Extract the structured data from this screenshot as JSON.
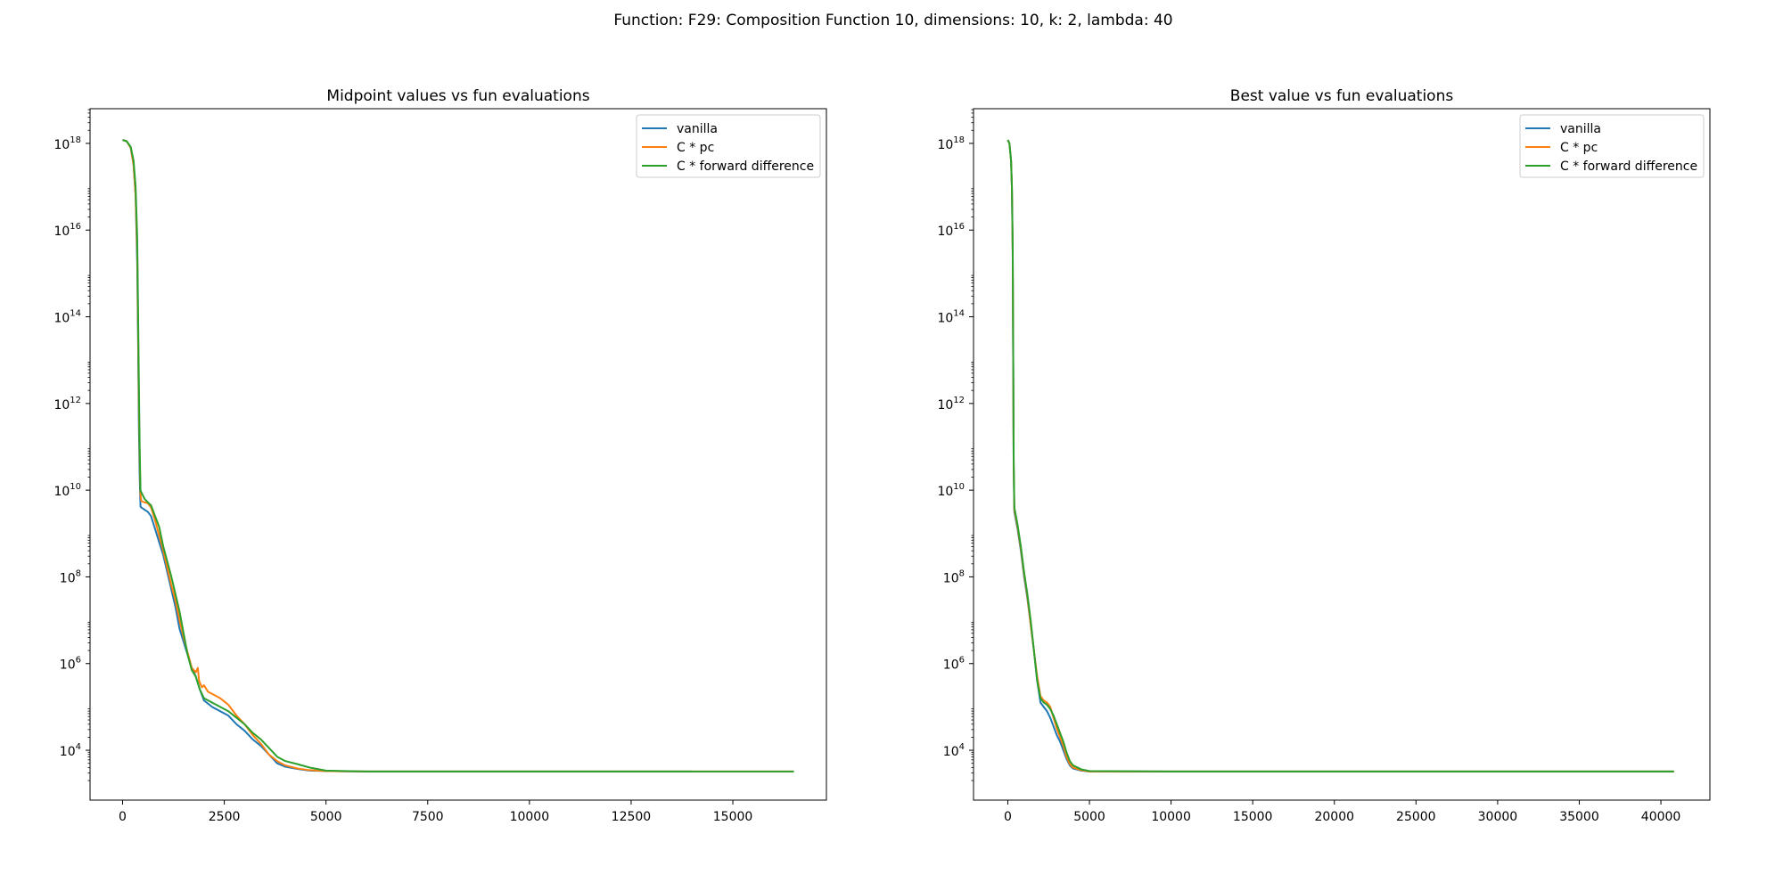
{
  "figure": {
    "suptitle": "Function: F29: Composition Function 10, dimensions: 10, k: 2, lambda: 40"
  },
  "colors": {
    "vanilla": "#1f77b4",
    "pc": "#ff7f0e",
    "fd": "#2ca02c"
  },
  "chart_data": [
    {
      "type": "line",
      "title": "Midpoint values vs fun evaluations",
      "xlabel": "",
      "ylabel": "",
      "yscale": "log",
      "xlim": [
        -800,
        17300
      ],
      "ylim_log10": [
        2.85,
        18.8
      ],
      "xticks": [
        0,
        2500,
        5000,
        7500,
        10000,
        12500,
        15000
      ],
      "xtick_labels": [
        "0",
        "2500",
        "5000",
        "7500",
        "10000",
        "12500",
        "15000"
      ],
      "yticks_exp": [
        4,
        6,
        8,
        10,
        12,
        14,
        16,
        18
      ],
      "legend_position": "upper right",
      "grid": false,
      "series": [
        {
          "name": "vanilla",
          "color_key": "vanilla",
          "points": [
            [
              0,
              18.08
            ],
            [
              100,
              18.05
            ],
            [
              200,
              17.9
            ],
            [
              270,
              17.5
            ],
            [
              320,
              16.8
            ],
            [
              360,
              15.2
            ],
            [
              380,
              13.5
            ],
            [
              400,
              11.5
            ],
            [
              420,
              10.3
            ],
            [
              440,
              9.62
            ],
            [
              460,
              9.6
            ],
            [
              540,
              9.55
            ],
            [
              620,
              9.5
            ],
            [
              700,
              9.4
            ],
            [
              800,
              9.1
            ],
            [
              900,
              8.8
            ],
            [
              1000,
              8.5
            ],
            [
              1100,
              8.1
            ],
            [
              1200,
              7.7
            ],
            [
              1300,
              7.3
            ],
            [
              1400,
              6.8
            ],
            [
              1500,
              6.5
            ],
            [
              1600,
              6.2
            ],
            [
              1700,
              5.9
            ],
            [
              1750,
              5.8
            ],
            [
              1800,
              5.7
            ],
            [
              1900,
              5.4
            ],
            [
              2000,
              5.15
            ],
            [
              2200,
              5.0
            ],
            [
              2400,
              4.9
            ],
            [
              2600,
              4.8
            ],
            [
              2800,
              4.6
            ],
            [
              3000,
              4.45
            ],
            [
              3200,
              4.25
            ],
            [
              3400,
              4.1
            ],
            [
              3600,
              3.9
            ],
            [
              3800,
              3.7
            ],
            [
              4000,
              3.62
            ],
            [
              4300,
              3.57
            ],
            [
              4600,
              3.53
            ],
            [
              5000,
              3.52
            ],
            [
              6000,
              3.51
            ],
            [
              8000,
              3.51
            ],
            [
              10000,
              3.51
            ],
            [
              12000,
              3.51
            ],
            [
              14000,
              3.51
            ]
          ]
        },
        {
          "name": "C * pc",
          "color_key": "pc",
          "points": [
            [
              0,
              18.08
            ],
            [
              100,
              18.05
            ],
            [
              200,
              17.9
            ],
            [
              270,
              17.5
            ],
            [
              320,
              16.8
            ],
            [
              360,
              15.5
            ],
            [
              380,
              13.8
            ],
            [
              400,
              12.0
            ],
            [
              420,
              10.8
            ],
            [
              440,
              9.9
            ],
            [
              460,
              9.75
            ],
            [
              540,
              9.72
            ],
            [
              620,
              9.7
            ],
            [
              700,
              9.6
            ],
            [
              800,
              9.3
            ],
            [
              900,
              8.95
            ],
            [
              1000,
              8.6
            ],
            [
              1100,
              8.2
            ],
            [
              1200,
              7.8
            ],
            [
              1300,
              7.45
            ],
            [
              1400,
              7.0
            ],
            [
              1500,
              6.6
            ],
            [
              1600,
              6.25
            ],
            [
              1700,
              5.9
            ],
            [
              1800,
              5.8
            ],
            [
              1850,
              5.9
            ],
            [
              1880,
              5.6
            ],
            [
              1950,
              5.45
            ],
            [
              2000,
              5.5
            ],
            [
              2100,
              5.35
            ],
            [
              2200,
              5.3
            ],
            [
              2400,
              5.2
            ],
            [
              2600,
              5.05
            ],
            [
              2800,
              4.8
            ],
            [
              3000,
              4.6
            ],
            [
              3200,
              4.35
            ],
            [
              3400,
              4.15
            ],
            [
              3600,
              3.9
            ],
            [
              3800,
              3.75
            ],
            [
              4000,
              3.65
            ],
            [
              4300,
              3.58
            ],
            [
              4600,
              3.54
            ],
            [
              5000,
              3.52
            ],
            [
              6000,
              3.51
            ],
            [
              8000,
              3.51
            ],
            [
              10000,
              3.51
            ],
            [
              12000,
              3.51
            ],
            [
              14000,
              3.51
            ],
            [
              16500,
              3.51
            ]
          ]
        },
        {
          "name": "C * forward difference",
          "color_key": "fd",
          "points": [
            [
              0,
              18.08
            ],
            [
              100,
              18.05
            ],
            [
              200,
              17.92
            ],
            [
              270,
              17.6
            ],
            [
              320,
              17.0
            ],
            [
              360,
              15.8
            ],
            [
              380,
              14.2
            ],
            [
              400,
              12.5
            ],
            [
              420,
              11.0
            ],
            [
              440,
              10.0
            ],
            [
              460,
              9.95
            ],
            [
              540,
              9.8
            ],
            [
              620,
              9.72
            ],
            [
              700,
              9.65
            ],
            [
              800,
              9.4
            ],
            [
              900,
              9.15
            ],
            [
              1000,
              8.7
            ],
            [
              1100,
              8.35
            ],
            [
              1200,
              8.0
            ],
            [
              1300,
              7.6
            ],
            [
              1400,
              7.2
            ],
            [
              1500,
              6.7
            ],
            [
              1600,
              6.2
            ],
            [
              1700,
              5.85
            ],
            [
              1800,
              5.7
            ],
            [
              1900,
              5.4
            ],
            [
              2000,
              5.2
            ],
            [
              2200,
              5.1
            ],
            [
              2400,
              5.0
            ],
            [
              2600,
              4.9
            ],
            [
              2800,
              4.75
            ],
            [
              3000,
              4.6
            ],
            [
              3200,
              4.4
            ],
            [
              3400,
              4.25
            ],
            [
              3600,
              4.05
            ],
            [
              3800,
              3.85
            ],
            [
              4000,
              3.75
            ],
            [
              4300,
              3.68
            ],
            [
              4600,
              3.6
            ],
            [
              5000,
              3.53
            ],
            [
              6000,
              3.51
            ],
            [
              8000,
              3.51
            ],
            [
              10000,
              3.51
            ],
            [
              12000,
              3.51
            ],
            [
              14000,
              3.51
            ],
            [
              16500,
              3.51
            ]
          ]
        }
      ]
    },
    {
      "type": "line",
      "title": "Best value vs fun evaluations",
      "xlabel": "",
      "ylabel": "",
      "yscale": "log",
      "xlim": [
        -2100,
        43000
      ],
      "ylim_log10": [
        2.85,
        18.8
      ],
      "xticks": [
        0,
        5000,
        10000,
        15000,
        20000,
        25000,
        30000,
        35000,
        40000
      ],
      "xtick_labels": [
        "0",
        "5000",
        "10000",
        "15000",
        "20000",
        "25000",
        "30000",
        "35000",
        "40000"
      ],
      "yticks_exp": [
        4,
        6,
        8,
        10,
        12,
        14,
        16,
        18
      ],
      "legend_position": "upper right",
      "grid": false,
      "series": [
        {
          "name": "vanilla",
          "color_key": "vanilla",
          "points": [
            [
              0,
              18.08
            ],
            [
              100,
              18.0
            ],
            [
              200,
              17.6
            ],
            [
              250,
              17.0
            ],
            [
              300,
              15.5
            ],
            [
              330,
              13.0
            ],
            [
              360,
              10.5
            ],
            [
              400,
              9.5
            ],
            [
              500,
              9.3
            ],
            [
              600,
              9.1
            ],
            [
              800,
              8.6
            ],
            [
              1000,
              8.0
            ],
            [
              1200,
              7.5
            ],
            [
              1400,
              6.9
            ],
            [
              1600,
              6.3
            ],
            [
              1800,
              5.6
            ],
            [
              2000,
              5.1
            ],
            [
              2200,
              5.0
            ],
            [
              2400,
              4.9
            ],
            [
              2600,
              4.75
            ],
            [
              2800,
              4.55
            ],
            [
              3000,
              4.35
            ],
            [
              3200,
              4.2
            ],
            [
              3400,
              4.0
            ],
            [
              3600,
              3.8
            ],
            [
              3800,
              3.65
            ],
            [
              4000,
              3.58
            ],
            [
              4500,
              3.53
            ],
            [
              5000,
              3.51
            ],
            [
              10000,
              3.51
            ],
            [
              20000,
              3.51
            ],
            [
              30000,
              3.51
            ],
            [
              40800,
              3.51
            ]
          ]
        },
        {
          "name": "C * pc",
          "color_key": "pc",
          "points": [
            [
              0,
              18.08
            ],
            [
              100,
              18.0
            ],
            [
              200,
              17.6
            ],
            [
              250,
              17.0
            ],
            [
              300,
              15.5
            ],
            [
              330,
              13.0
            ],
            [
              360,
              10.6
            ],
            [
              400,
              9.55
            ],
            [
              500,
              9.35
            ],
            [
              600,
              9.15
            ],
            [
              800,
              8.65
            ],
            [
              1000,
              8.05
            ],
            [
              1200,
              7.55
            ],
            [
              1400,
              6.9
            ],
            [
              1600,
              6.3
            ],
            [
              1800,
              5.7
            ],
            [
              2000,
              5.25
            ],
            [
              2200,
              5.15
            ],
            [
              2400,
              5.1
            ],
            [
              2600,
              5.0
            ],
            [
              2800,
              4.75
            ],
            [
              3000,
              4.5
            ],
            [
              3200,
              4.3
            ],
            [
              3400,
              4.1
            ],
            [
              3600,
              3.85
            ],
            [
              3800,
              3.68
            ],
            [
              4000,
              3.6
            ],
            [
              4500,
              3.54
            ],
            [
              5000,
              3.51
            ],
            [
              10000,
              3.51
            ],
            [
              20000,
              3.51
            ],
            [
              30000,
              3.51
            ],
            [
              40800,
              3.51
            ]
          ]
        },
        {
          "name": "C * forward difference",
          "color_key": "fd",
          "points": [
            [
              0,
              18.08
            ],
            [
              100,
              18.0
            ],
            [
              200,
              17.6
            ],
            [
              250,
              17.0
            ],
            [
              300,
              15.6
            ],
            [
              330,
              13.2
            ],
            [
              360,
              10.7
            ],
            [
              400,
              9.6
            ],
            [
              500,
              9.4
            ],
            [
              600,
              9.2
            ],
            [
              800,
              8.7
            ],
            [
              1000,
              8.1
            ],
            [
              1200,
              7.6
            ],
            [
              1400,
              7.0
            ],
            [
              1600,
              6.3
            ],
            [
              1800,
              5.6
            ],
            [
              2000,
              5.2
            ],
            [
              2200,
              5.1
            ],
            [
              2400,
              5.05
            ],
            [
              2600,
              4.95
            ],
            [
              2800,
              4.8
            ],
            [
              3000,
              4.6
            ],
            [
              3200,
              4.4
            ],
            [
              3400,
              4.2
            ],
            [
              3600,
              3.95
            ],
            [
              3800,
              3.75
            ],
            [
              4000,
              3.65
            ],
            [
              4500,
              3.56
            ],
            [
              5000,
              3.52
            ],
            [
              10000,
              3.51
            ],
            [
              20000,
              3.51
            ],
            [
              30000,
              3.51
            ],
            [
              40800,
              3.51
            ]
          ]
        }
      ]
    }
  ]
}
